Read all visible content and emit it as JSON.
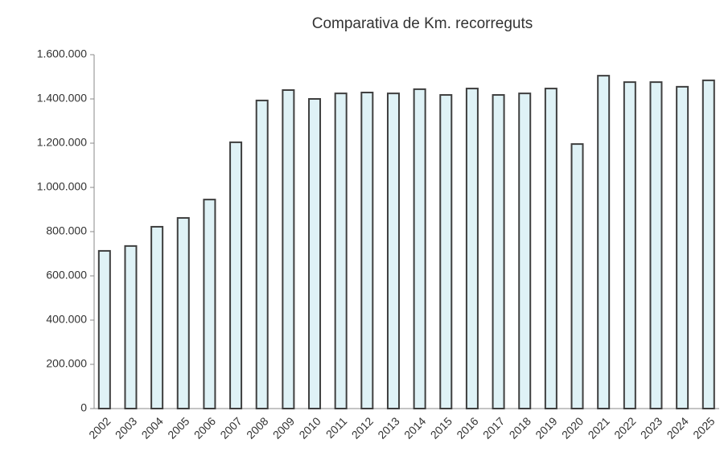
{
  "chart_data": {
    "type": "bar",
    "title": "Comparativa de Km. recorreguts",
    "categories": [
      "2002",
      "2003",
      "2004",
      "2005",
      "2006",
      "2007",
      "2008",
      "2009",
      "2010",
      "2011",
      "2012",
      "2013",
      "2014",
      "2015",
      "2016",
      "2017",
      "2018",
      "2019",
      "2020",
      "2021",
      "2022",
      "2023",
      "2024",
      "2025"
    ],
    "values": [
      713000,
      735000,
      822000,
      862000,
      945000,
      1204000,
      1393000,
      1440000,
      1400000,
      1425000,
      1429000,
      1425000,
      1444000,
      1418000,
      1447000,
      1418000,
      1425000,
      1447000,
      1196000,
      1505000,
      1476000,
      1476000,
      1455000,
      1484000
    ],
    "color": "#dff2f6",
    "edge_color": "#3f3f3f",
    "ylim": [
      0,
      1600000
    ],
    "yticks": [
      0,
      {
        "value": 200000,
        "label": "200.000"
      },
      {
        "value": 400000,
        "label": "400.000"
      },
      {
        "value": 600000,
        "label": "600.000"
      },
      {
        "value": 800000,
        "label": "800.000"
      },
      {
        "value": 1000000,
        "label": "1.000.000"
      },
      {
        "value": 1200000,
        "label": "1.200.000"
      },
      {
        "value": 1400000,
        "label": "1.400.000"
      },
      {
        "value": 1600000,
        "label": "1.600.000"
      }
    ],
    "grid": false
  }
}
